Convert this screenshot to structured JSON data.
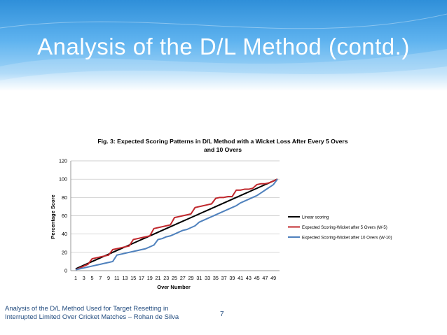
{
  "slide": {
    "title": "Analysis of the D/L Method (contd.)",
    "footer_line1": "Analysis of the D/L Method Used for Target Resetting in",
    "footer_line2": "Interrupted Limited Over Cricket Matches – Rohan  de Silva",
    "page_number": "7"
  },
  "colors": {
    "banner_top": "#2f8fd9",
    "linear": "#000000",
    "w5": "#c0282d",
    "w10": "#4f81bd"
  },
  "chart_data": {
    "type": "line",
    "title_line1": "Fig. 3: Expected Scoring Patterns in D/L Method with a Wicket Loss After Every 5 Overs",
    "title_line2": "and 10 Overs",
    "xlabel": "Over Number",
    "ylabel": "Percentage Score",
    "ylim": [
      0,
      120
    ],
    "yticks": [
      0,
      20,
      40,
      60,
      80,
      100,
      120
    ],
    "x_tick_labels": [
      "1",
      "3",
      "5",
      "7",
      "9",
      "11",
      "13",
      "15",
      "17",
      "19",
      "21",
      "23",
      "25",
      "27",
      "29",
      "31",
      "33",
      "35",
      "37",
      "39",
      "41",
      "43",
      "45",
      "47",
      "49"
    ],
    "x": [
      1,
      2,
      3,
      4,
      5,
      6,
      7,
      8,
      9,
      10,
      11,
      12,
      13,
      14,
      15,
      16,
      17,
      18,
      19,
      20,
      21,
      22,
      23,
      24,
      25,
      26,
      27,
      28,
      29,
      30,
      31,
      32,
      33,
      34,
      35,
      36,
      37,
      38,
      39,
      40,
      41,
      42,
      43,
      44,
      45,
      46,
      47,
      48,
      49,
      50
    ],
    "legend_position": "right",
    "series": [
      {
        "name": "Linear scoring",
        "color": "#000000",
        "values": [
          2,
          4,
          6,
          8,
          10,
          12,
          14,
          16,
          18,
          20,
          22,
          24,
          26,
          28,
          30,
          32,
          34,
          36,
          38,
          40,
          42,
          44,
          46,
          48,
          50,
          52,
          54,
          56,
          58,
          60,
          62,
          64,
          66,
          68,
          70,
          72,
          74,
          76,
          78,
          80,
          82,
          84,
          86,
          88,
          90,
          92,
          94,
          96,
          98,
          100
        ]
      },
      {
        "name": "Expected Scoring-Wicket after 5 Overs (W-5)",
        "color": "#c0282d",
        "values": [
          1,
          3,
          5,
          7,
          13,
          14,
          15,
          16,
          17,
          23,
          24,
          25,
          26,
          27,
          34,
          35,
          36,
          37,
          38,
          46,
          47,
          48,
          49,
          50,
          58,
          59,
          60,
          61,
          62,
          69,
          70,
          71,
          72,
          73,
          79,
          80,
          80,
          81,
          81,
          88,
          88,
          89,
          89,
          90,
          94,
          95,
          95,
          96,
          98,
          100
        ]
      },
      {
        "name": "Expected Scoring-Wicket after 10 Overs (W-10)",
        "color": "#4f81bd",
        "values": [
          1,
          2,
          3,
          4,
          5,
          6,
          7,
          8,
          9,
          10,
          17,
          18,
          19,
          20,
          21,
          22,
          23,
          24,
          26,
          28,
          34,
          35,
          37,
          38,
          40,
          42,
          44,
          45,
          47,
          49,
          53,
          55,
          57,
          59,
          61,
          63,
          65,
          67,
          69,
          71,
          74,
          76,
          78,
          80,
          82,
          85,
          88,
          91,
          94,
          100
        ]
      }
    ]
  }
}
